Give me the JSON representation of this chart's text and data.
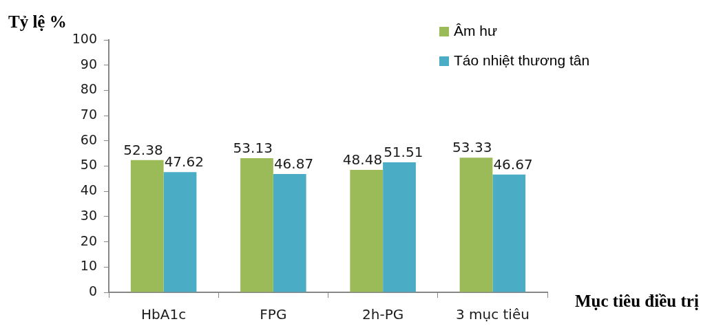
{
  "chart_data": {
    "type": "bar",
    "ylabel": "Tỷ lệ %",
    "xlabel": "Mục tiêu điều trị",
    "categories": [
      "HbA1c",
      "FPG",
      "2h-PG",
      "3 mục tiêu"
    ],
    "series": [
      {
        "name": "Âm hư",
        "color": "#9bbb59",
        "values": [
          52.38,
          53.13,
          48.48,
          53.33
        ]
      },
      {
        "name": "Táo nhiệt thương tân",
        "color": "#4bacc6",
        "values": [
          47.62,
          46.87,
          51.51,
          46.67
        ]
      }
    ],
    "ylim": [
      0,
      100
    ],
    "yticks": [
      0,
      10,
      20,
      30,
      40,
      50,
      60,
      70,
      80,
      90,
      100
    ],
    "data_labels": true,
    "legend": "top right",
    "grid": false
  }
}
